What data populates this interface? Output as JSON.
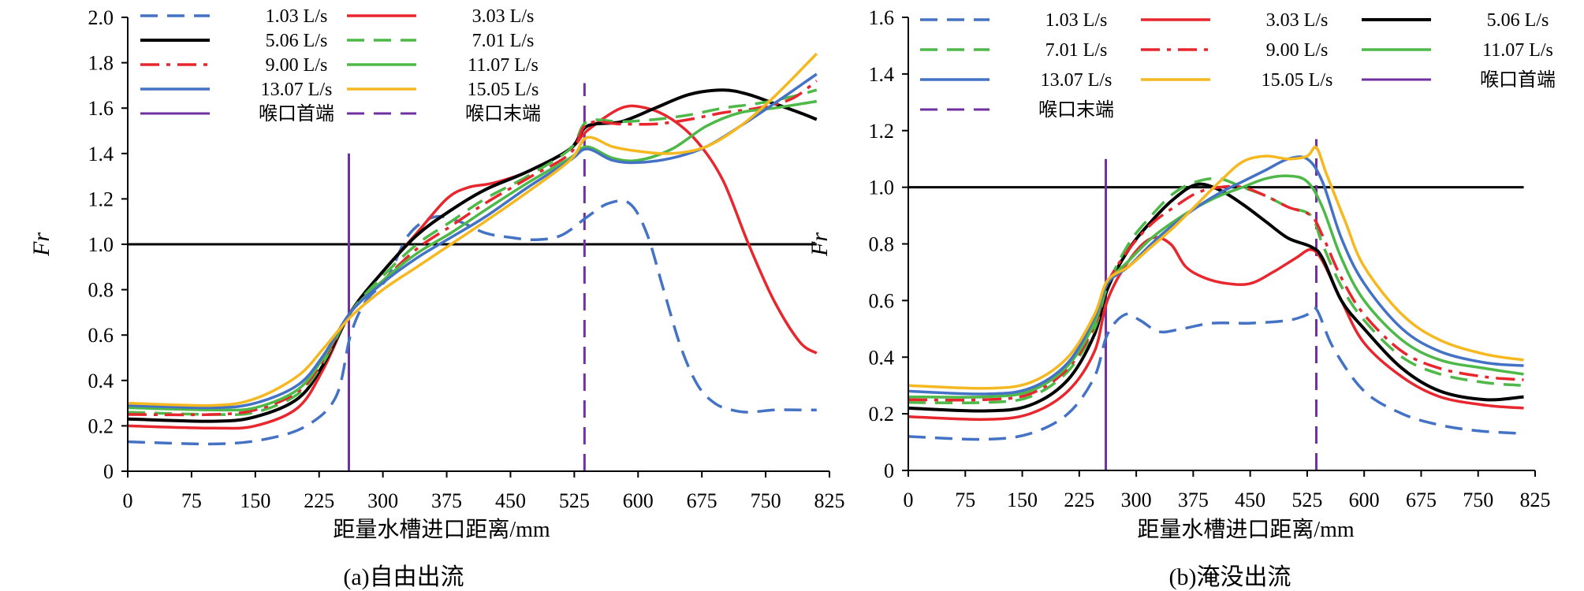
{
  "chart_data": [
    {
      "type": "line",
      "caption": "(a)自由出流",
      "xlabel": "距量水槽进口距离/mm",
      "ylabel": "Fr",
      "xlim": [
        0,
        825
      ],
      "ylim": [
        0,
        2.0
      ],
      "xticks": [
        0,
        75,
        150,
        225,
        300,
        375,
        450,
        525,
        600,
        675,
        750,
        825
      ],
      "yticks": [
        "0",
        "0.2",
        "0.4",
        "0.6",
        "0.8",
        "1.0",
        "1.2",
        "1.4",
        "1.6",
        "1.8",
        "2.0"
      ],
      "reference_line": {
        "y": 1.0,
        "color": "#000000"
      },
      "throat_start": {
        "name": "喉口首端",
        "x": 260,
        "y_top": 1.4,
        "color": "#7030A0"
      },
      "throat_end": {
        "name": "喉口末端",
        "x": 537,
        "y_top": 1.71,
        "color": "#7030A0"
      },
      "legend_position": "top-left",
      "series": [
        {
          "name": "1.03 L/s",
          "color": "#4472C4",
          "dash": "dash",
          "x": [
            0,
            100,
            160,
            210,
            245,
            262,
            280,
            305,
            330,
            360,
            390,
            420,
            450,
            480,
            510,
            540,
            565,
            590,
            610,
            630,
            650,
            670,
            690,
            710,
            730,
            760,
            790,
            810
          ],
          "y": [
            0.13,
            0.12,
            0.14,
            0.2,
            0.33,
            0.6,
            0.75,
            0.85,
            1.04,
            1.12,
            1.1,
            1.05,
            1.03,
            1.02,
            1.04,
            1.12,
            1.18,
            1.18,
            1.05,
            0.8,
            0.55,
            0.38,
            0.3,
            0.27,
            0.26,
            0.27,
            0.27,
            0.27
          ]
        },
        {
          "name": "3.03 L/s",
          "color": "#E8262D",
          "dash": "solid",
          "x": [
            0,
            100,
            150,
            200,
            230,
            262,
            300,
            340,
            375,
            400,
            430,
            470,
            520,
            540,
            580,
            610,
            640,
            670,
            700,
            730,
            760,
            790,
            810
          ],
          "y": [
            0.2,
            0.19,
            0.2,
            0.28,
            0.45,
            0.7,
            0.88,
            1.05,
            1.2,
            1.25,
            1.27,
            1.32,
            1.42,
            1.5,
            1.6,
            1.6,
            1.55,
            1.45,
            1.28,
            1.0,
            0.75,
            0.57,
            0.52
          ]
        },
        {
          "name": "5.06 L/s",
          "color": "#000000",
          "dash": "solid",
          "x": [
            0,
            100,
            150,
            200,
            230,
            262,
            300,
            340,
            380,
            420,
            470,
            520,
            540,
            580,
            620,
            660,
            700,
            730,
            760,
            790,
            810
          ],
          "y": [
            0.23,
            0.22,
            0.24,
            0.32,
            0.47,
            0.7,
            0.88,
            1.04,
            1.15,
            1.24,
            1.32,
            1.42,
            1.52,
            1.54,
            1.6,
            1.66,
            1.68,
            1.66,
            1.62,
            1.58,
            1.55
          ]
        },
        {
          "name": "7.01 L/s",
          "color": "#4EB848",
          "dash": "dash",
          "x": [
            0,
            100,
            150,
            200,
            230,
            262,
            300,
            340,
            380,
            420,
            470,
            520,
            540,
            580,
            620,
            660,
            700,
            740,
            780,
            810
          ],
          "y": [
            0.26,
            0.25,
            0.26,
            0.34,
            0.48,
            0.7,
            0.86,
            1.0,
            1.1,
            1.2,
            1.3,
            1.42,
            1.54,
            1.54,
            1.55,
            1.57,
            1.6,
            1.62,
            1.65,
            1.68
          ]
        },
        {
          "name": "9.00 L/s",
          "color": "#E8262D",
          "dash": "dashdot",
          "x": [
            0,
            100,
            150,
            200,
            230,
            262,
            300,
            340,
            380,
            420,
            470,
            520,
            540,
            580,
            620,
            660,
            700,
            740,
            780,
            810
          ],
          "y": [
            0.25,
            0.25,
            0.27,
            0.35,
            0.49,
            0.7,
            0.84,
            0.98,
            1.08,
            1.18,
            1.29,
            1.4,
            1.53,
            1.53,
            1.53,
            1.55,
            1.58,
            1.6,
            1.64,
            1.72
          ]
        },
        {
          "name": "11.07 L/s",
          "color": "#4EB848",
          "dash": "solid",
          "x": [
            0,
            100,
            150,
            200,
            230,
            262,
            300,
            340,
            380,
            420,
            470,
            520,
            540,
            570,
            600,
            640,
            680,
            720,
            760,
            810
          ],
          "y": [
            0.28,
            0.27,
            0.28,
            0.36,
            0.5,
            0.7,
            0.84,
            0.96,
            1.05,
            1.15,
            1.27,
            1.38,
            1.43,
            1.38,
            1.37,
            1.42,
            1.52,
            1.58,
            1.6,
            1.63
          ]
        },
        {
          "name": "13.07 L/s",
          "color": "#4472C4",
          "dash": "solid",
          "x": [
            0,
            100,
            150,
            200,
            230,
            262,
            300,
            340,
            380,
            420,
            470,
            520,
            540,
            570,
            600,
            640,
            680,
            720,
            760,
            810
          ],
          "y": [
            0.29,
            0.28,
            0.3,
            0.38,
            0.51,
            0.7,
            0.83,
            0.94,
            1.03,
            1.12,
            1.25,
            1.37,
            1.42,
            1.37,
            1.36,
            1.38,
            1.43,
            1.52,
            1.62,
            1.75
          ]
        },
        {
          "name": "15.05 L/s",
          "color": "#F6B820",
          "dash": "solid",
          "x": [
            0,
            100,
            150,
            200,
            230,
            262,
            300,
            340,
            380,
            420,
            470,
            520,
            540,
            570,
            600,
            640,
            680,
            720,
            760,
            810
          ],
          "y": [
            0.3,
            0.29,
            0.32,
            0.42,
            0.54,
            0.68,
            0.8,
            0.9,
            1.0,
            1.1,
            1.23,
            1.37,
            1.47,
            1.43,
            1.41,
            1.4,
            1.43,
            1.52,
            1.65,
            1.84
          ]
        }
      ]
    },
    {
      "type": "line",
      "caption": "(b)淹没出流",
      "xlabel": "距量水槽进口距离/mm",
      "ylabel": "Fr",
      "xlim": [
        0,
        825
      ],
      "ylim": [
        0,
        1.6
      ],
      "xticks": [
        0,
        75,
        150,
        225,
        300,
        375,
        450,
        525,
        600,
        675,
        750,
        825
      ],
      "yticks": [
        "0",
        "0.2",
        "0.4",
        "0.6",
        "0.8",
        "1.0",
        "1.2",
        "1.4",
        "1.6"
      ],
      "reference_line": {
        "y": 1.0,
        "color": "#000000"
      },
      "throat_start": {
        "name": "喉口首端",
        "x": 260,
        "y_top": 1.1,
        "color": "#7030A0"
      },
      "throat_end": {
        "name": "喉口末端",
        "x": 537,
        "y_top": 1.17,
        "color": "#7030A0"
      },
      "legend_position": "top-left",
      "series": [
        {
          "name": "1.03 L/s",
          "color": "#4472C4",
          "dash": "dash",
          "x": [
            0,
            100,
            160,
            210,
            245,
            262,
            285,
            305,
            330,
            360,
            400,
            450,
            500,
            525,
            537,
            560,
            600,
            650,
            700,
            750,
            810
          ],
          "y": [
            0.12,
            0.11,
            0.13,
            0.2,
            0.33,
            0.48,
            0.55,
            0.53,
            0.49,
            0.5,
            0.52,
            0.52,
            0.53,
            0.55,
            0.57,
            0.43,
            0.28,
            0.2,
            0.16,
            0.14,
            0.13
          ]
        },
        {
          "name": "3.03 L/s",
          "color": "#E8262D",
          "dash": "solid",
          "x": [
            0,
            100,
            160,
            210,
            245,
            262,
            290,
            320,
            345,
            365,
            390,
            420,
            450,
            480,
            510,
            530,
            545,
            570,
            600,
            650,
            700,
            760,
            810
          ],
          "y": [
            0.19,
            0.18,
            0.2,
            0.28,
            0.42,
            0.6,
            0.74,
            0.82,
            0.8,
            0.72,
            0.68,
            0.66,
            0.66,
            0.7,
            0.75,
            0.78,
            0.74,
            0.6,
            0.45,
            0.33,
            0.26,
            0.23,
            0.22
          ]
        },
        {
          "name": "5.06 L/s",
          "color": "#000000",
          "dash": "solid",
          "x": [
            0,
            100,
            160,
            210,
            245,
            262,
            290,
            320,
            350,
            380,
            410,
            440,
            470,
            500,
            530,
            545,
            570,
            600,
            650,
            700,
            760,
            810
          ],
          "y": [
            0.22,
            0.21,
            0.23,
            0.32,
            0.48,
            0.64,
            0.78,
            0.88,
            0.96,
            1.01,
            0.99,
            0.94,
            0.88,
            0.82,
            0.79,
            0.75,
            0.6,
            0.5,
            0.36,
            0.28,
            0.25,
            0.26
          ]
        },
        {
          "name": "7.01 L/s",
          "color": "#4EB848",
          "dash": "dash",
          "x": [
            0,
            100,
            160,
            210,
            245,
            262,
            290,
            320,
            350,
            380,
            410,
            440,
            470,
            500,
            530,
            545,
            570,
            600,
            650,
            700,
            760,
            810
          ],
          "y": [
            0.24,
            0.24,
            0.26,
            0.35,
            0.5,
            0.65,
            0.8,
            0.9,
            0.98,
            1.02,
            1.03,
            1.0,
            0.97,
            0.93,
            0.9,
            0.8,
            0.65,
            0.53,
            0.4,
            0.34,
            0.31,
            0.3
          ]
        },
        {
          "name": "9.00 L/s",
          "color": "#E8262D",
          "dash": "dashdot",
          "x": [
            0,
            100,
            160,
            210,
            245,
            262,
            290,
            320,
            350,
            380,
            410,
            440,
            470,
            500,
            530,
            545,
            570,
            600,
            650,
            700,
            760,
            810
          ],
          "y": [
            0.25,
            0.25,
            0.27,
            0.36,
            0.51,
            0.66,
            0.78,
            0.87,
            0.93,
            0.98,
            1.0,
            1.0,
            0.97,
            0.93,
            0.9,
            0.83,
            0.68,
            0.55,
            0.42,
            0.36,
            0.33,
            0.32
          ]
        },
        {
          "name": "11.07 L/s",
          "color": "#4EB848",
          "dash": "solid",
          "x": [
            0,
            100,
            160,
            210,
            245,
            262,
            290,
            320,
            350,
            380,
            410,
            440,
            470,
            500,
            525,
            545,
            570,
            600,
            650,
            700,
            760,
            810
          ],
          "y": [
            0.26,
            0.26,
            0.28,
            0.37,
            0.52,
            0.66,
            0.74,
            0.82,
            0.88,
            0.93,
            0.97,
            1.0,
            1.03,
            1.04,
            1.02,
            0.93,
            0.75,
            0.6,
            0.46,
            0.39,
            0.36,
            0.34
          ]
        },
        {
          "name": "13.07 L/s",
          "color": "#4472C4",
          "dash": "solid",
          "x": [
            0,
            100,
            160,
            210,
            245,
            262,
            290,
            320,
            350,
            380,
            410,
            440,
            470,
            500,
            525,
            545,
            570,
            600,
            650,
            700,
            760,
            810
          ],
          "y": [
            0.28,
            0.27,
            0.29,
            0.38,
            0.54,
            0.66,
            0.72,
            0.8,
            0.87,
            0.93,
            0.98,
            1.02,
            1.06,
            1.1,
            1.1,
            1.02,
            0.82,
            0.66,
            0.5,
            0.42,
            0.38,
            0.37
          ]
        },
        {
          "name": "15.05 L/s",
          "color": "#F6B820",
          "dash": "solid",
          "x": [
            0,
            100,
            160,
            210,
            245,
            262,
            290,
            320,
            350,
            380,
            410,
            440,
            470,
            500,
            525,
            537,
            550,
            575,
            600,
            650,
            700,
            760,
            810
          ],
          "y": [
            0.3,
            0.29,
            0.31,
            0.4,
            0.55,
            0.67,
            0.72,
            0.79,
            0.86,
            0.94,
            1.02,
            1.09,
            1.11,
            1.1,
            1.11,
            1.14,
            1.05,
            0.88,
            0.72,
            0.55,
            0.46,
            0.41,
            0.39
          ]
        }
      ]
    }
  ],
  "legends": [
    {
      "items": [
        "1.03 L/s",
        "3.03 L/s",
        "5.06 L/s",
        "7.01 L/s",
        "9.00 L/s",
        "11.07 L/s",
        "13.07 L/s",
        "15.05 L/s",
        "喉口首端",
        "喉口末端"
      ]
    },
    {
      "items": [
        "1.03 L/s",
        "3.03 L/s",
        "5.06 L/s",
        "7.01 L/s",
        "9.00 L/s",
        "11.07 L/s",
        "13.07 L/s",
        "15.05 L/s",
        "喉口首端",
        "喉口末端"
      ]
    }
  ]
}
